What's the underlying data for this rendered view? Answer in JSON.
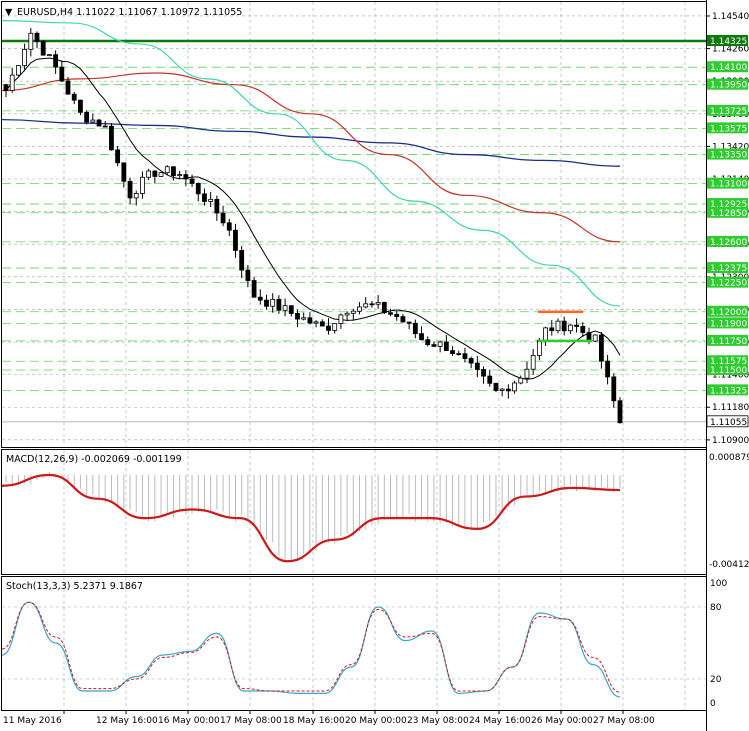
{
  "main": {
    "header": {
      "symbol": "EURUSD,H4",
      "open": "1.11022",
      "high": "1.11067",
      "low": "1.10972",
      "close": "1.11055"
    },
    "colors": {
      "bull": "#000000",
      "bear": "#000000",
      "ma_fast": "#000000",
      "ma_cyan": "#3fd6a8",
      "ma_red": "#c8302c",
      "ma_blue": "#1d2d8c",
      "support": "#2ecc2e",
      "resistance": "#ff6a1a",
      "key_level": "#0a7a0a"
    },
    "key_level": {
      "value": 1.14325,
      "label": "1.14325"
    },
    "ticks": [
      "1.14540",
      "1.14260",
      "1.13980",
      "1.13700",
      "1.13420",
      "1.13140",
      "1.12860",
      "1.12580",
      "1.12300",
      "1.12020",
      "1.11740",
      "1.11460",
      "1.11180",
      "1.10900"
    ],
    "levels": [
      "1.14100",
      "1.13950",
      "1.13725",
      "1.13575",
      "1.13350",
      "1.13100",
      "1.12925",
      "1.12850",
      "1.12600",
      "1.12375",
      "1.12250",
      "1.12000",
      "1.11900",
      "1.11750",
      "1.11575",
      "1.11500",
      "1.11325"
    ],
    "current_price": "1.11055",
    "resistance_zone": 1.12,
    "support_zone": 1.1175
  },
  "macd": {
    "title": "MACD(12,26,9) -0.002069 -0.001199",
    "ticks": [
      "0.000879",
      "-0.004127"
    ]
  },
  "stoch": {
    "title": "Stoch(13,3,3) 5.2371 9.1867",
    "ticks": [
      "100",
      "80",
      "20",
      "0"
    ]
  },
  "xaxis": {
    "labels": [
      "11 May 2016",
      "12 May 16:00",
      "16 May 00:00",
      "17 May 08:00",
      "18 May 16:00",
      "20 May 00:00",
      "23 May 08:00",
      "24 May 16:00",
      "26 May 00:00",
      "27 May 08:00"
    ]
  },
  "chart_data": {
    "type": "candlestick",
    "title": "EURUSD,H4",
    "ylim": [
      1.1083,
      1.1466
    ],
    "x_labels": [
      "11 May 2016",
      "12 May 16:00",
      "16 May 00:00",
      "17 May 08:00",
      "18 May 16:00",
      "20 May 00:00",
      "23 May 08:00",
      "24 May 16:00",
      "26 May 00:00",
      "27 May 08:00"
    ],
    "close_path": [
      1.139,
      1.144,
      1.141,
      1.137,
      1.136,
      1.13,
      1.132,
      1.132,
      1.13,
      1.1275,
      1.1215,
      1.1205,
      1.1195,
      1.1185,
      1.1205,
      1.1205,
      1.1195,
      1.1175,
      1.117,
      1.115,
      1.113,
      1.1145,
      1.1185,
      1.119,
      1.1175,
      1.1105
    ],
    "ma_cyan": [
      1.145,
      1.1448,
      1.143,
      1.14,
      1.137,
      1.133,
      1.1295,
      1.127,
      1.124,
      1.1205
    ],
    "ma_red": [
      1.139,
      1.14,
      1.1405,
      1.1395,
      1.137,
      1.1335,
      1.13,
      1.1285,
      1.126
    ],
    "ma_blue": [
      1.1365,
      1.1362,
      1.136,
      1.1355,
      1.135,
      1.1345,
      1.1335,
      1.133,
      1.1325
    ],
    "macd_ylim": [
      -0.004127,
      0.000879
    ],
    "macd_signal": [
      -0.0005,
      0.0,
      -0.0011,
      -0.002,
      -0.0016,
      -0.002,
      -0.004,
      -0.003,
      -0.002,
      -0.002,
      -0.0025,
      -0.001,
      -0.0006,
      -0.0007
    ],
    "stoch_ylim": [
      0,
      100
    ],
    "stoch_main": [
      40,
      84,
      50,
      10,
      10,
      22,
      40,
      43,
      58,
      10,
      10,
      8,
      8,
      30,
      80,
      52,
      60,
      8,
      10,
      30,
      75,
      70,
      32,
      5
    ],
    "stoch_signal": [
      45,
      84,
      55,
      12,
      12,
      20,
      38,
      42,
      55,
      12,
      10,
      10,
      10,
      32,
      78,
      55,
      58,
      10,
      10,
      30,
      72,
      70,
      38,
      9
    ]
  }
}
